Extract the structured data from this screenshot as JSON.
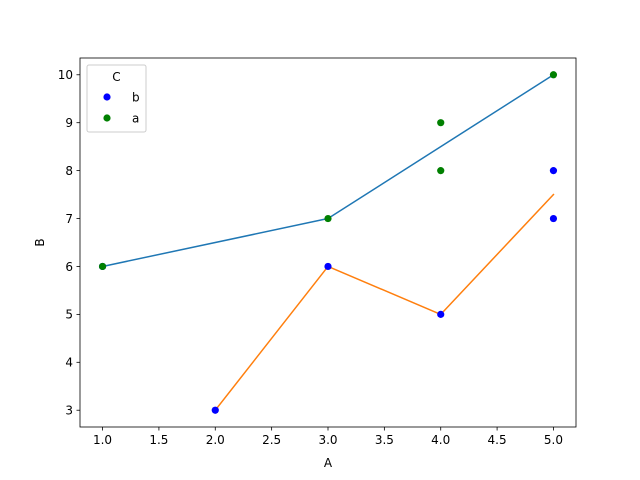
{
  "chart_data": {
    "type": "scatter",
    "xlabel": "A",
    "ylabel": "B",
    "xlim": [
      0.8,
      5.2
    ],
    "ylim": [
      2.65,
      10.35
    ],
    "xticks": [
      "1.0",
      "1.5",
      "2.0",
      "2.5",
      "3.0",
      "3.5",
      "4.0",
      "4.5",
      "5.0"
    ],
    "yticks": [
      "3",
      "4",
      "5",
      "6",
      "7",
      "8",
      "9",
      "10"
    ],
    "grid": false,
    "legend": {
      "title": "C",
      "placement": "upper-left",
      "entries": [
        {
          "label": "b",
          "color": "#0000ff"
        },
        {
          "label": "a",
          "color": "#008000"
        }
      ]
    },
    "scatter_series": [
      {
        "name": "b",
        "color": "#0000ff",
        "points": [
          [
            1,
            6
          ],
          [
            3,
            6
          ],
          [
            2,
            3
          ],
          [
            4,
            5
          ],
          [
            5,
            8
          ],
          [
            5,
            7
          ]
        ]
      },
      {
        "name": "a",
        "color": "#008000",
        "points": [
          [
            1,
            6
          ],
          [
            3,
            7
          ],
          [
            4,
            8
          ],
          [
            4,
            9
          ],
          [
            5,
            10
          ]
        ]
      }
    ],
    "line_series": [
      {
        "color": "#1f77b4",
        "points": [
          [
            1,
            6
          ],
          [
            3,
            7
          ],
          [
            5,
            10
          ]
        ]
      },
      {
        "color": "#ff7f0e",
        "points": [
          [
            2,
            3
          ],
          [
            3,
            6
          ],
          [
            4,
            5
          ],
          [
            5,
            7.5
          ]
        ]
      }
    ]
  }
}
